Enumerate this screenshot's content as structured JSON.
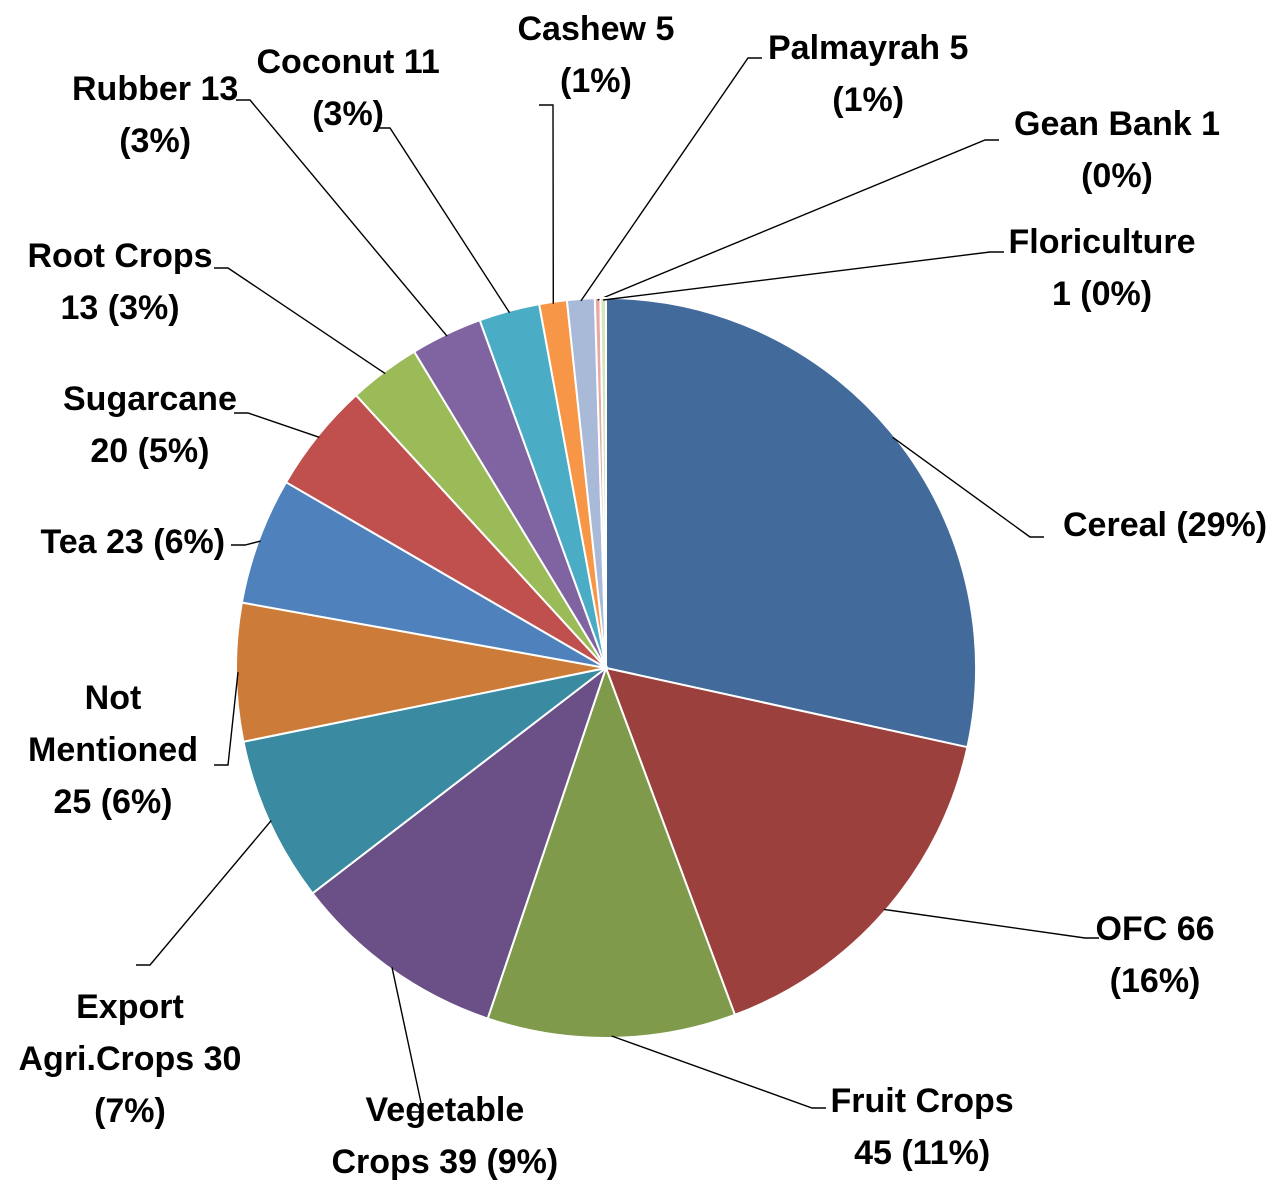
{
  "chart_data": {
    "type": "pie",
    "title": "",
    "slices": [
      {
        "name": "Cereal",
        "value": 118,
        "color": "#426A9B",
        "label_lines": [
          "Cereal (29%)"
        ]
      },
      {
        "name": "OFC",
        "value": 66,
        "color": "#9C403E",
        "label_lines": [
          "OFC 66",
          "(16%)"
        ]
      },
      {
        "name": "Fruit Crops",
        "value": 45,
        "color": "#7F9A4A",
        "label_lines": [
          "Fruit Crops",
          "45 (11%)"
        ]
      },
      {
        "name": "Vegetable Crops",
        "value": 39,
        "color": "#6A5087",
        "label_lines": [
          "Vegetable",
          "Crops 39 (9%)"
        ]
      },
      {
        "name": "Export Agri.Crops",
        "value": 30,
        "color": "#3A8BA2",
        "label_lines": [
          "Export",
          "Agri.Crops 30",
          "(7%)"
        ]
      },
      {
        "name": "Not Mentioned",
        "value": 25,
        "color": "#CC7B38",
        "label_lines": [
          "Not",
          "Mentioned",
          "25 (6%)"
        ]
      },
      {
        "name": "Tea",
        "value": 23,
        "color": "#4F81BD",
        "label_lines": [
          "Tea 23 (6%)"
        ]
      },
      {
        "name": "Sugarcane",
        "value": 20,
        "color": "#C0504D",
        "label_lines": [
          "Sugarcane",
          "20 (5%)"
        ]
      },
      {
        "name": "Root Crops",
        "value": 13,
        "color": "#9BBB59",
        "label_lines": [
          "Root Crops",
          "13 (3%)"
        ]
      },
      {
        "name": "Rubber",
        "value": 13,
        "color": "#8064A2",
        "label_lines": [
          "Rubber 13",
          "(3%)"
        ]
      },
      {
        "name": "Coconut",
        "value": 11,
        "color": "#4BACC6",
        "label_lines": [
          "Coconut 11",
          "(3%)"
        ]
      },
      {
        "name": "Cashew",
        "value": 5,
        "color": "#F79646",
        "label_lines": [
          "Cashew 5",
          "(1%)"
        ]
      },
      {
        "name": "Palmayrah",
        "value": 5,
        "color": "#A9B9D8",
        "label_lines": [
          "Palmayrah 5",
          "(1%)"
        ]
      },
      {
        "name": "Gean Bank",
        "value": 1,
        "color": "#E8A7A5",
        "label_lines": [
          "Gean Bank 1",
          "(0%)"
        ]
      },
      {
        "name": "Floriculture",
        "value": 1,
        "color": "#D7E4BD",
        "label_lines": [
          "Floriculture",
          "1 (0%)"
        ]
      }
    ]
  }
}
